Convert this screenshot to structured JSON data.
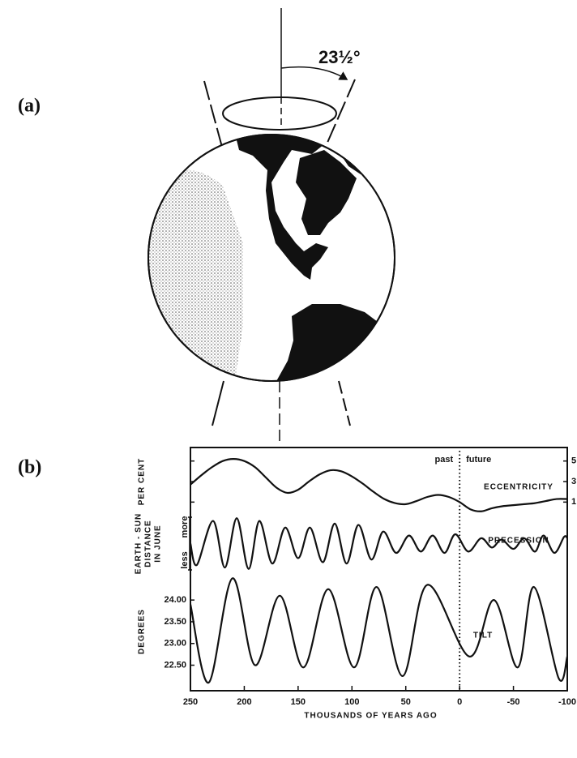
{
  "panel_labels": [
    "(a)",
    "(b)"
  ],
  "diagram": {
    "tilt_label": "23½°"
  },
  "chart_data": [
    {
      "type": "line",
      "ylabel": [
        "PER CENT"
      ],
      "annotation": "ECCENTRICITY",
      "annotations": [
        "past",
        "future"
      ],
      "divider_x": 0,
      "xlim": [
        250,
        -100
      ],
      "ylim": [
        0,
        6
      ],
      "yticks": [
        1,
        3,
        5
      ],
      "x": [
        250,
        240,
        230,
        220,
        210,
        200,
        190,
        180,
        170,
        160,
        150,
        140,
        130,
        120,
        110,
        100,
        90,
        80,
        70,
        60,
        50,
        40,
        30,
        20,
        10,
        0,
        -10,
        -20,
        -30,
        -40,
        -50,
        -60,
        -70,
        -80,
        -90,
        -100
      ],
      "values": [
        2.7,
        3.6,
        4.4,
        5.0,
        5.2,
        5.0,
        4.4,
        3.4,
        2.4,
        1.9,
        2.2,
        3.0,
        3.7,
        4.1,
        4.0,
        3.5,
        2.8,
        2.0,
        1.3,
        0.9,
        0.8,
        1.1,
        1.5,
        1.7,
        1.5,
        1.0,
        0.3,
        0.1,
        0.4,
        0.6,
        0.7,
        0.8,
        0.9,
        1.1,
        1.3,
        1.3
      ]
    },
    {
      "type": "line",
      "ylabel": [
        "EARTH - SUN",
        "DISTANCE",
        "IN JUNE"
      ],
      "scale_labels": [
        "more",
        "less"
      ],
      "annotation": "PRECESSION",
      "xlim": [
        250,
        -100
      ],
      "ylim": [
        -1.05,
        1.05
      ],
      "x": [
        250,
        244,
        229,
        218,
        207,
        196,
        186,
        174,
        162,
        150,
        139,
        127,
        116,
        105,
        94,
        82,
        71,
        59,
        47,
        36,
        25,
        14,
        4,
        -8,
        -20,
        -30,
        -39,
        -50,
        -60,
        -70,
        -78,
        -88,
        -97,
        -100
      ],
      "values": [
        0.0,
        -0.8,
        0.85,
        -0.9,
        0.95,
        -0.95,
        0.85,
        -0.75,
        0.6,
        -0.55,
        0.6,
        -0.7,
        0.75,
        -0.75,
        0.7,
        -0.6,
        0.45,
        -0.35,
        0.3,
        -0.3,
        0.3,
        -0.35,
        0.35,
        -0.3,
        0.2,
        -0.15,
        0.15,
        -0.2,
        0.2,
        -0.3,
        0.3,
        -0.35,
        0.25,
        0.2
      ]
    },
    {
      "type": "line",
      "ylabel": [
        "DEGREES"
      ],
      "annotation": "TILT",
      "xlabel": "THOUSANDS OF YEARS AGO",
      "xlim": [
        250,
        -100
      ],
      "ylim": [
        21.95,
        24.6
      ],
      "yticks": [
        {
          "value": 24,
          "label": "24.00"
        },
        {
          "value": 23.5,
          "label": "23.50"
        },
        {
          "value": 23,
          "label": "23.00"
        },
        {
          "value": 22.5,
          "label": "22.50"
        }
      ],
      "xticks": [
        250,
        200,
        150,
        100,
        50,
        0,
        -50,
        -100
      ],
      "x": [
        250,
        233,
        211,
        190,
        167,
        145,
        122,
        98,
        77,
        53,
        30,
        -9,
        -32,
        -54,
        -69,
        -92,
        -100
      ],
      "values": [
        23.9,
        22.1,
        24.5,
        22.5,
        24.1,
        22.45,
        24.25,
        22.45,
        24.3,
        22.25,
        24.35,
        22.7,
        24.0,
        22.45,
        24.3,
        22.2,
        22.7
      ]
    }
  ]
}
